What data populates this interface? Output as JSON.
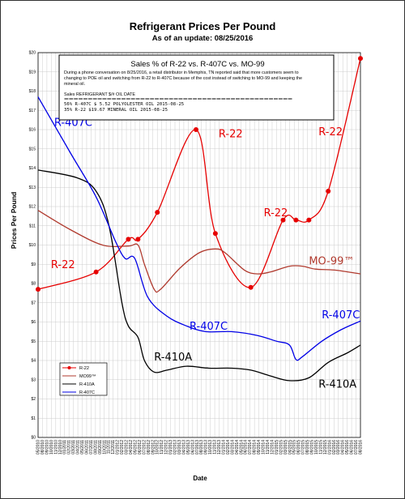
{
  "chart_data": {
    "type": "line",
    "title": "Refrigerant Prices Per Pound",
    "subtitle": "As of an update:  08/25/2016",
    "xlabel": "Date",
    "ylabel": "Prices Per Pound",
    "ylim": [
      0,
      20
    ],
    "y_ticks": [
      "$0",
      "$1",
      "$2",
      "$3",
      "$4",
      "$5",
      "$6",
      "$7",
      "$8",
      "$9",
      "$10",
      "$11",
      "$12",
      "$13",
      "$14",
      "$15",
      "$16",
      "$17",
      "$18",
      "$19",
      "$20"
    ],
    "x_ticks": [
      "05/2010",
      "08/2010",
      "09/2010",
      "10/2010",
      "11/2010",
      "12/2010",
      "01/2011",
      "02/2011",
      "03/2011",
      "04/2011",
      "05/2011",
      "06/2011",
      "07/2011",
      "08/2011",
      "09/2011",
      "10/2011",
      "11/2011",
      "12/2011",
      "01/2012",
      "02/2012",
      "03/2012",
      "04/2012",
      "05/2012",
      "06/2012",
      "07/2012",
      "08/2012",
      "09/2012",
      "10/2012",
      "11/2012",
      "12/2012",
      "01/2013",
      "02/2013",
      "03/2013",
      "04/2013",
      "05/2013",
      "06/2013",
      "07/2013",
      "08/2013",
      "09/2013",
      "10/2013",
      "11/2013",
      "12/2013",
      "01/2014",
      "02/2014",
      "03/2014",
      "04/2014",
      "05/2014",
      "06/2014",
      "07/2014",
      "08/2014",
      "09/2014",
      "10/2014",
      "11/2014",
      "12/2014",
      "01/2015",
      "02/2015",
      "03/2015",
      "04/2015",
      "05/2015",
      "06/2015",
      "07/2015",
      "08/2015",
      "09/2015",
      "10/2015",
      "11/2015",
      "12/2015",
      "01/2016",
      "02/2016",
      "03/2016",
      "04/2016",
      "05/2016",
      "06/2016",
      "07/2016",
      "08/2016"
    ],
    "grid": true,
    "legend_position": "bottom-left",
    "series": [
      {
        "name": "R-22",
        "color": "#e60000",
        "marker": "circle",
        "points": [
          [
            0,
            7.7
          ],
          [
            18,
            8.6
          ],
          [
            28,
            10.3
          ],
          [
            31,
            10.3
          ],
          [
            37,
            11.7
          ],
          [
            49,
            16.0
          ],
          [
            55,
            10.6
          ],
          [
            66,
            7.8
          ],
          [
            76,
            11.3
          ],
          [
            80,
            11.3
          ],
          [
            84,
            11.3
          ],
          [
            90,
            12.8
          ],
          [
            100,
            19.7
          ]
        ]
      },
      {
        "name": "MO99™",
        "color": "#b03a2e",
        "marker": "none",
        "points": [
          [
            0,
            11.8
          ],
          [
            10,
            10.8
          ],
          [
            20,
            10.0
          ],
          [
            28,
            9.95
          ],
          [
            31,
            10.0
          ],
          [
            33,
            9.0
          ],
          [
            36,
            7.7
          ],
          [
            38,
            7.7
          ],
          [
            44,
            8.8
          ],
          [
            50,
            9.6
          ],
          [
            55,
            9.8
          ],
          [
            58,
            9.6
          ],
          [
            64,
            8.7
          ],
          [
            68,
            8.5
          ],
          [
            72,
            8.6
          ],
          [
            78,
            8.9
          ],
          [
            82,
            8.9
          ],
          [
            86,
            8.75
          ],
          [
            92,
            8.7
          ],
          [
            100,
            8.5
          ]
        ]
      },
      {
        "name": "R-410A",
        "color": "#000000",
        "marker": "none",
        "points": [
          [
            0,
            13.9
          ],
          [
            12,
            13.5
          ],
          [
            18,
            12.8
          ],
          [
            22,
            11.0
          ],
          [
            26,
            7.0
          ],
          [
            28,
            5.8
          ],
          [
            31,
            5.2
          ],
          [
            33,
            4.0
          ],
          [
            36,
            3.4
          ],
          [
            40,
            3.5
          ],
          [
            46,
            3.7
          ],
          [
            53,
            3.6
          ],
          [
            60,
            3.6
          ],
          [
            66,
            3.5
          ],
          [
            72,
            3.2
          ],
          [
            78,
            2.95
          ],
          [
            84,
            3.1
          ],
          [
            90,
            3.9
          ],
          [
            96,
            4.4
          ],
          [
            100,
            4.8
          ]
        ]
      },
      {
        "name": "R-407C",
        "color": "#0000e6",
        "marker": "none",
        "points": [
          [
            0,
            17.7
          ],
          [
            10,
            14.8
          ],
          [
            18,
            12.5
          ],
          [
            24,
            10.2
          ],
          [
            27,
            9.3
          ],
          [
            30,
            9.3
          ],
          [
            34,
            7.3
          ],
          [
            40,
            6.3
          ],
          [
            46,
            5.8
          ],
          [
            52,
            5.5
          ],
          [
            60,
            5.5
          ],
          [
            68,
            5.3
          ],
          [
            74,
            5.0
          ],
          [
            78,
            4.8
          ],
          [
            80,
            4.05
          ],
          [
            82,
            4.2
          ],
          [
            88,
            5.0
          ],
          [
            94,
            5.6
          ],
          [
            100,
            6.05
          ]
        ]
      }
    ],
    "annotations": [
      {
        "text": "R-407C",
        "color": "#0000e6",
        "x": 5,
        "y": 16.2
      },
      {
        "text": "R-22",
        "color": "#e60000",
        "x": 56,
        "y": 15.6
      },
      {
        "text": "R-22",
        "color": "#e60000",
        "x": 87,
        "y": 15.7
      },
      {
        "text": "R-22",
        "color": "#e60000",
        "x": 70,
        "y": 11.5
      },
      {
        "text": "R-22",
        "color": "#e60000",
        "x": 4,
        "y": 8.8
      },
      {
        "text": "MO-99™",
        "color": "#b03a2e",
        "x": 84,
        "y": 9.0
      },
      {
        "text": "R-407C",
        "color": "#0000e6",
        "x": 47,
        "y": 5.6
      },
      {
        "text": "R-407C",
        "color": "#0000e6",
        "x": 88,
        "y": 6.2
      },
      {
        "text": "R-410A",
        "color": "#000000",
        "x": 36,
        "y": 4.0
      },
      {
        "text": "R-410A",
        "color": "#000000",
        "x": 87,
        "y": 2.6
      }
    ],
    "note_box": {
      "heading": "Sales % of R-22 vs. R-407C  vs.  MO-99",
      "lines": [
        "During a phone conversation on 8/25/2016, a retail distributor in Memphis, TN reported said that more customers seem to",
        "changing to POE oil and switching from R-22 to R-407C because of the cost instead of switching to MO-99 and keeping the",
        "mineral oil."
      ],
      "table_header": "Sales REFRIGERANT  $/#  OIL  DATE",
      "separator": "================================================",
      "rows": [
        "56%  R-407C  $ 5.52  POLYOLESTER OIL  2015-08-25",
        "35%  R-22  $19.67  MINERAL  OIL  2015-08-25"
      ]
    }
  }
}
